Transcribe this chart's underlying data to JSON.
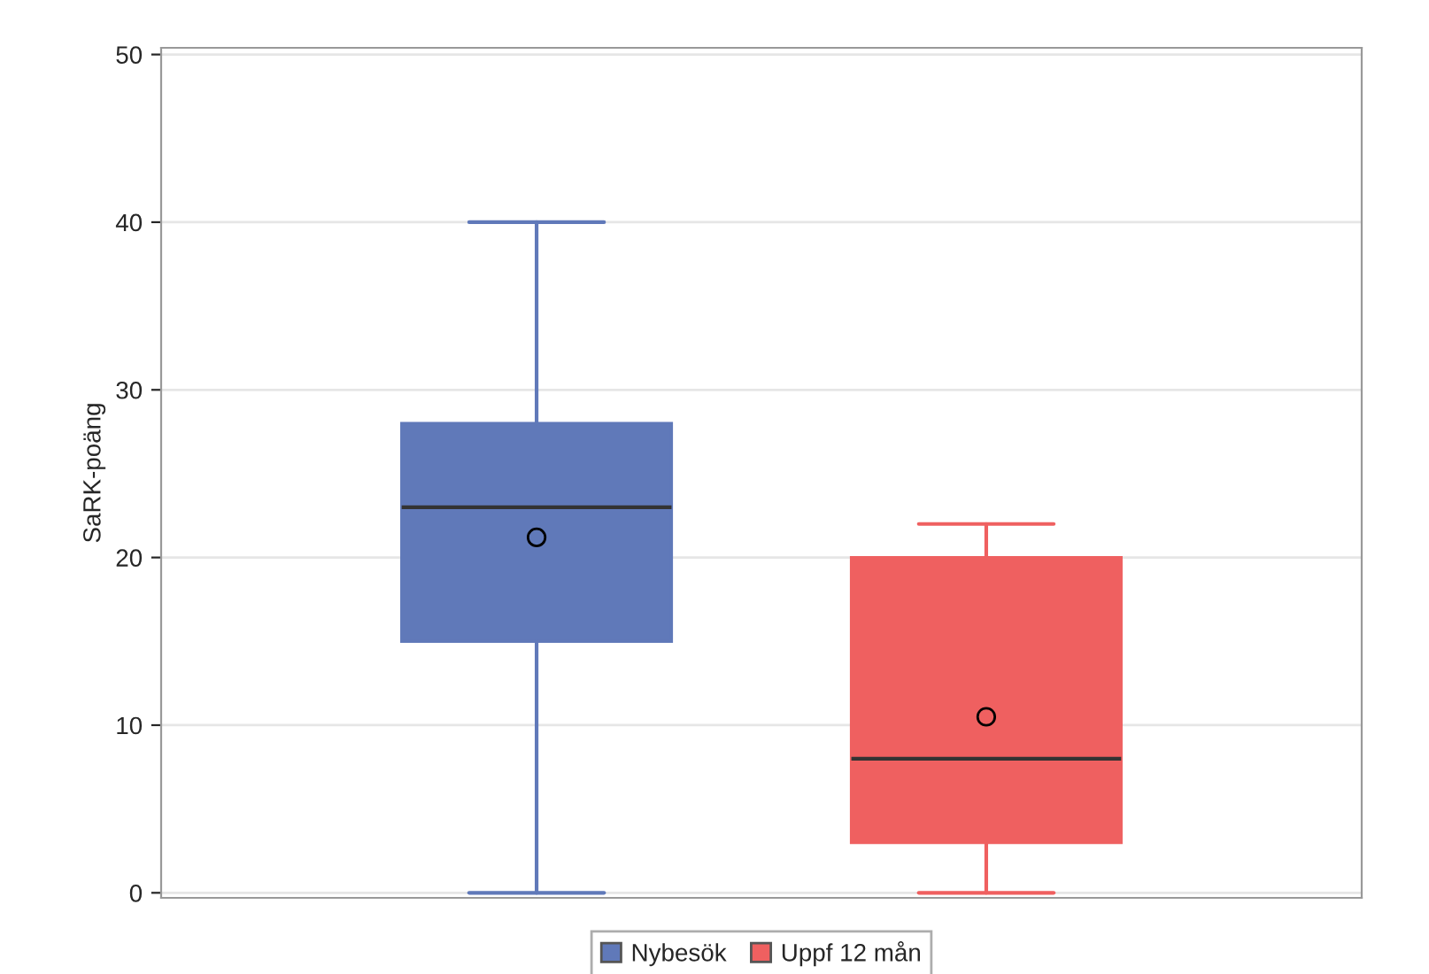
{
  "chart_data": {
    "type": "box",
    "ylabel": "SaRK-poäng",
    "categories": [
      null,
      null
    ],
    "series": [
      {
        "name": "Nybesök",
        "color": "#6079b9",
        "boxes": [
          {
            "low": 0,
            "q1": 15,
            "median": 23,
            "q3": 28,
            "high": 40,
            "mean": 21.2
          },
          null
        ]
      },
      {
        "name": "Uppf 12 mån",
        "color": "#ef6060",
        "boxes": [
          null,
          {
            "low": 0,
            "q1": 3,
            "median": 8,
            "q3": 20,
            "high": 22,
            "mean": 10.5
          }
        ]
      }
    ],
    "ylim": [
      -0.3,
      50.4
    ],
    "yticks": [
      0,
      10,
      20,
      30,
      40,
      50
    ],
    "grid": "y",
    "legend": "bottom"
  }
}
